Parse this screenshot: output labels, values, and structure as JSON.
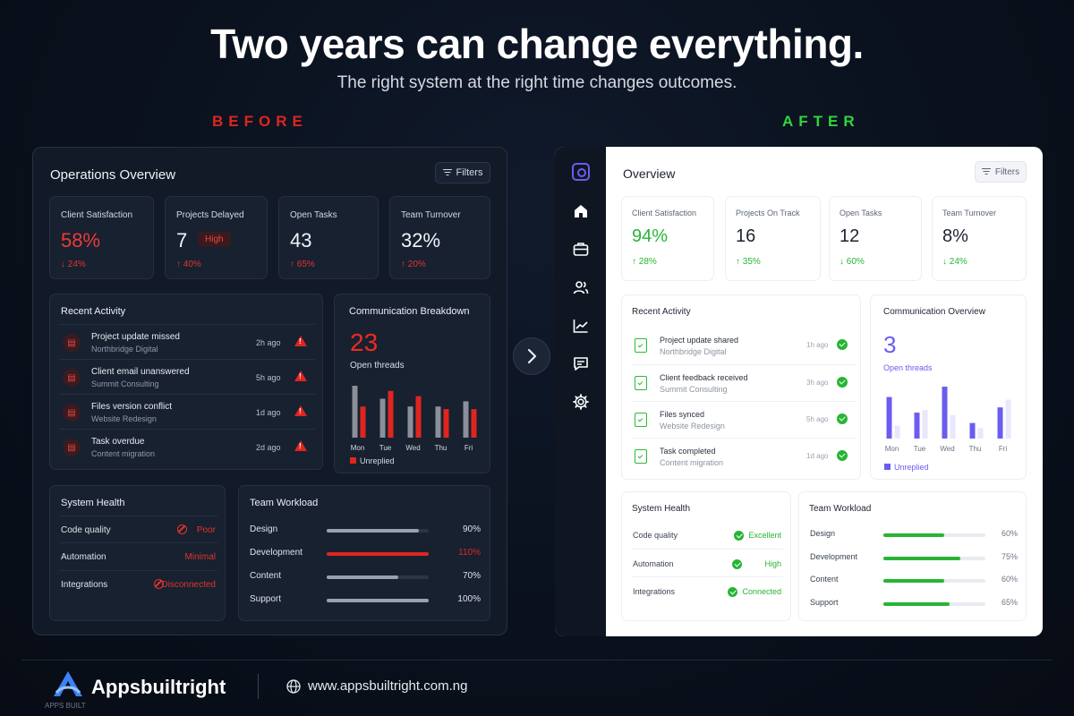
{
  "header": {
    "headline": "Two years can change everything.",
    "subline": "The right system at the right time changes outcomes.",
    "before_label": "BEFORE",
    "after_label": "AFTER"
  },
  "before": {
    "title": "Operations Overview",
    "filters_label": "Filters",
    "stats": [
      {
        "label": "Client Satisfaction",
        "value": "58%",
        "change": "↓ 24%"
      },
      {
        "label": "Projects Delayed",
        "value": "7",
        "badge": "High",
        "change": "↑ 40%"
      },
      {
        "label": "Open Tasks",
        "value": "43",
        "change": "↑ 65%"
      },
      {
        "label": "Team Turnover",
        "value": "32%",
        "change": "↑ 20%"
      }
    ],
    "activity": {
      "title": "Recent Activity",
      "items": [
        {
          "title": "Project update missed",
          "sub": "Northbridge Digital",
          "time": "2h ago"
        },
        {
          "title": "Client email unanswered",
          "sub": "Summit Consulting",
          "time": "5h ago"
        },
        {
          "title": "Files version conflict",
          "sub": "Website Redesign",
          "time": "1d ago"
        },
        {
          "title": "Task overdue",
          "sub": "Content migration",
          "time": "2d ago"
        }
      ]
    },
    "communication": {
      "title": "Communication Breakdown",
      "count": "23",
      "count_label": "Open threads",
      "legend": "Unreplied"
    },
    "health": {
      "title": "System Health",
      "rows": [
        {
          "name": "Code quality",
          "value": "Poor"
        },
        {
          "name": "Automation",
          "value": "Minimal"
        },
        {
          "name": "Integrations",
          "value": "Disconnected"
        }
      ]
    },
    "workload": {
      "title": "Team Workload",
      "rows": [
        {
          "name": "Design",
          "value": "90%",
          "level": 0.9
        },
        {
          "name": "Development",
          "value": "110%",
          "level": 1.0
        },
        {
          "name": "Content",
          "value": "70%",
          "level": 0.7
        },
        {
          "name": "Support",
          "value": "100%",
          "level": 1.0
        }
      ]
    }
  },
  "after": {
    "title": "Overview",
    "filters_label": "Filters",
    "stats": [
      {
        "label": "Client Satisfaction",
        "value": "94%",
        "change": "↑ 28%"
      },
      {
        "label": "Projects On Track",
        "value": "16",
        "change": "↑ 35%"
      },
      {
        "label": "Open Tasks",
        "value": "12",
        "change": "↓ 60%"
      },
      {
        "label": "Team Turnover",
        "value": "8%",
        "change": "↓ 24%"
      }
    ],
    "activity": {
      "title": "Recent Activity",
      "items": [
        {
          "title": "Project update shared",
          "sub": "Northbridge Digital",
          "time": "1h ago"
        },
        {
          "title": "Client feedback received",
          "sub": "Summit Consulting",
          "time": "3h ago"
        },
        {
          "title": "Files synced",
          "sub": "Website Redesign",
          "time": "5h ago"
        },
        {
          "title": "Task completed",
          "sub": "Content migration",
          "time": "1d ago"
        }
      ]
    },
    "communication": {
      "title": "Communication Overview",
      "count": "3",
      "count_label": "Open threads",
      "legend": "Unreplied"
    },
    "health": {
      "title": "System Health",
      "rows": [
        {
          "name": "Code quality",
          "value": "Excellent"
        },
        {
          "name": "Automation",
          "value": "High"
        },
        {
          "name": "Integrations",
          "value": "Connected"
        }
      ]
    },
    "workload": {
      "title": "Team Workload",
      "rows": [
        {
          "name": "Design",
          "value": "60%",
          "level": 0.6
        },
        {
          "name": "Development",
          "value": "75%",
          "level": 0.75
        },
        {
          "name": "Content",
          "value": "60%",
          "level": 0.6
        },
        {
          "name": "Support",
          "value": "65%",
          "level": 0.65
        }
      ]
    },
    "sidebar_icons": [
      "logo-icon",
      "home-icon",
      "briefcase-icon",
      "users-icon",
      "chart-icon",
      "message-icon",
      "settings-icon"
    ]
  },
  "footer": {
    "brand": "Appsbuiltright",
    "caption": "APPS BUILT",
    "url": "www.appsbuiltright.com.ng"
  },
  "colors": {
    "bad": "#e0251f",
    "good": "#27b534",
    "accent": "#6b5cf0"
  },
  "chart_data": [
    {
      "type": "bar",
      "categories": [
        "Mon",
        "Tue",
        "Wed",
        "Thu",
        "Fri"
      ],
      "series": [
        {
          "name": "",
          "values": [
            10,
            7.5,
            6,
            6,
            7
          ]
        },
        {
          "name": "Unreplied",
          "values": [
            6,
            9,
            8,
            5.5,
            5.5
          ]
        }
      ],
      "ylim": [
        0,
        10
      ]
    },
    {
      "type": "bar",
      "categories": [
        "Mon",
        "Tue",
        "Wed",
        "Thu",
        "Fri"
      ],
      "series": [
        {
          "name": "Unreplied",
          "values": [
            8,
            5,
            10,
            3,
            6
          ]
        },
        {
          "name": "",
          "values": [
            2.5,
            5.5,
            4.5,
            2,
            7.5
          ]
        }
      ],
      "ylim": [
        0,
        10
      ]
    }
  ]
}
